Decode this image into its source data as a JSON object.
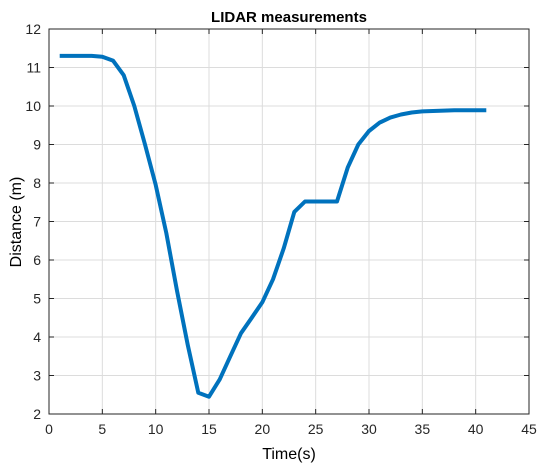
{
  "chart_data": {
    "type": "line",
    "title": "LIDAR measurements",
    "xlabel": "Time(s)",
    "ylabel": "Distance (m)",
    "xlim": [
      0,
      45
    ],
    "ylim": [
      2,
      12
    ],
    "xticks": [
      0,
      5,
      10,
      15,
      20,
      25,
      30,
      35,
      40,
      45
    ],
    "yticks": [
      2,
      3,
      4,
      5,
      6,
      7,
      8,
      9,
      10,
      11,
      12
    ],
    "grid": true,
    "series": [
      {
        "color": "#0072BD",
        "x": [
          1,
          2,
          3,
          4,
          5,
          6,
          7,
          8,
          9,
          10,
          11,
          12,
          13,
          14,
          15,
          16,
          17,
          18,
          19,
          20,
          21,
          22,
          23,
          24,
          25,
          26,
          27,
          28,
          29,
          30,
          31,
          32,
          33,
          34,
          35,
          36,
          37,
          38,
          39,
          40,
          41
        ],
        "y": [
          11.3,
          11.3,
          11.3,
          11.3,
          11.28,
          11.18,
          10.8,
          10.0,
          9.0,
          7.95,
          6.7,
          5.2,
          3.8,
          2.55,
          2.45,
          2.9,
          3.5,
          4.1,
          4.5,
          4.9,
          5.5,
          6.3,
          7.25,
          7.52,
          7.52,
          7.52,
          7.52,
          8.4,
          9.0,
          9.35,
          9.57,
          9.7,
          9.78,
          9.83,
          9.86,
          9.87,
          9.88,
          9.89,
          9.89,
          9.89,
          9.89
        ]
      }
    ]
  }
}
